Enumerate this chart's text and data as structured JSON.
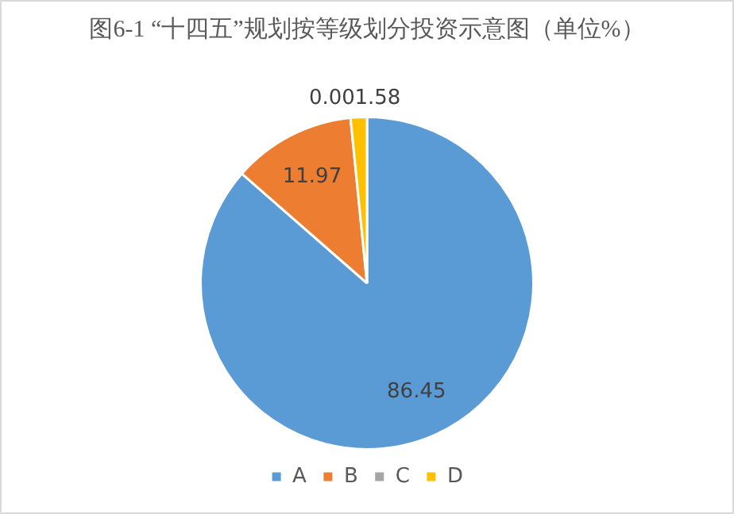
{
  "chart_data": {
    "type": "pie",
    "title": "图6-1 “十四五”规划按等级划分投资示意图（单位%）",
    "categories": [
      "A",
      "B",
      "C",
      "D"
    ],
    "values": [
      86.45,
      11.97,
      0.0,
      1.58
    ],
    "colors": [
      "#5b9bd5",
      "#ed7d31",
      "#a5a5a5",
      "#ffc000"
    ],
    "value_labels": [
      "86.45",
      "11.97",
      "0.00",
      "1.58"
    ],
    "legend": "bottom"
  }
}
